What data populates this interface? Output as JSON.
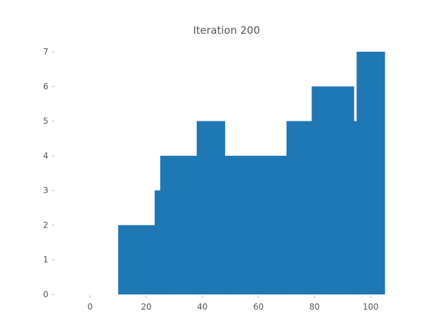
{
  "chart_data": {
    "type": "bar",
    "title": "Iteration 200",
    "xlabel": "",
    "ylabel": "",
    "xlim": [
      -8,
      105
    ],
    "ylim": [
      0,
      7
    ],
    "xticks": [
      0,
      20,
      40,
      60,
      80,
      100
    ],
    "yticks": [
      0,
      1,
      2,
      3,
      4,
      5,
      6,
      7
    ],
    "grid": false,
    "color": "#1f77b4",
    "bars": [
      {
        "x0": 10,
        "x1": 23,
        "value": 2
      },
      {
        "x0": 23,
        "x1": 25,
        "value": 3
      },
      {
        "x0": 25,
        "x1": 38,
        "value": 4
      },
      {
        "x0": 38,
        "x1": 48,
        "value": 5
      },
      {
        "x0": 48,
        "x1": 70,
        "value": 4
      },
      {
        "x0": 70,
        "x1": 79,
        "value": 5
      },
      {
        "x0": 79,
        "x1": 94,
        "value": 6
      },
      {
        "x0": 94,
        "x1": 95,
        "value": 5
      },
      {
        "x0": 95,
        "x1": 105,
        "value": 7
      }
    ]
  }
}
